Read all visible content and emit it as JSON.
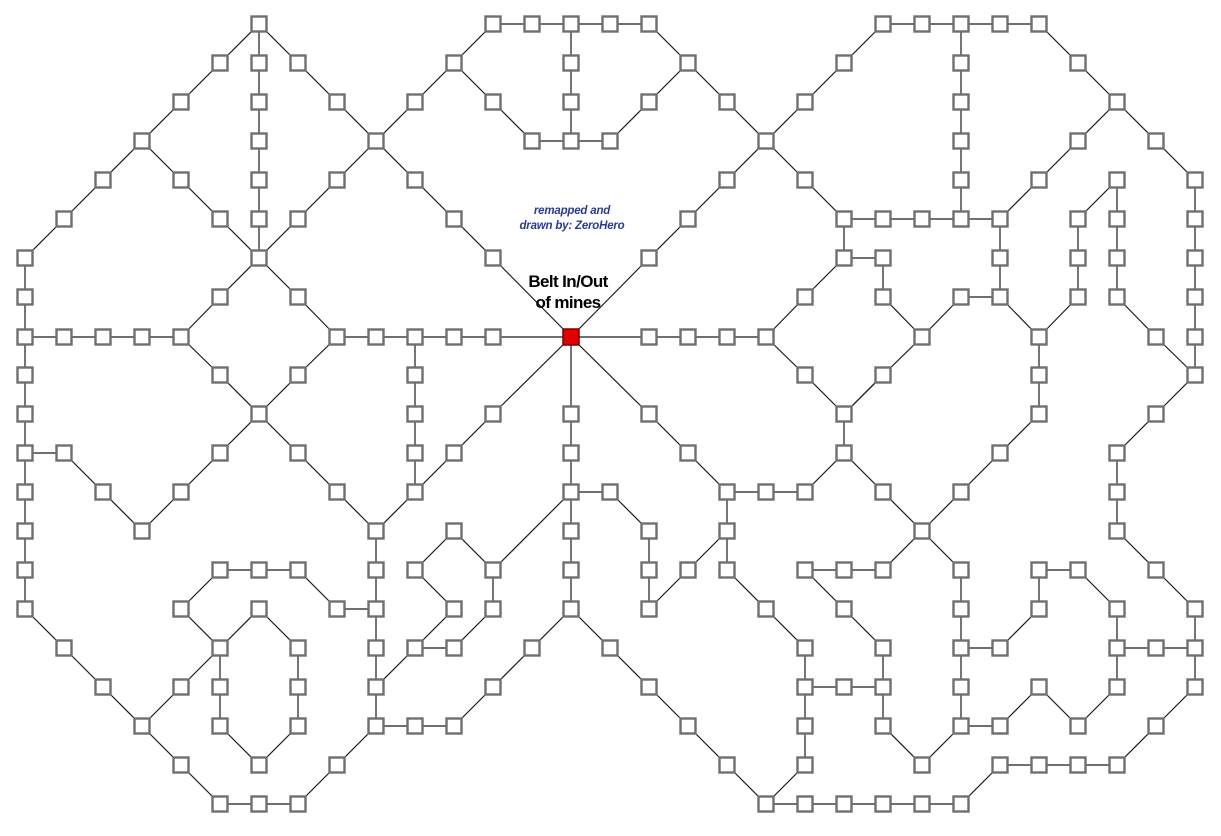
{
  "map": {
    "title_line1": "Belt In/Out",
    "title_line2": "of mines",
    "credit_line1": "remapped and",
    "credit_line2": "drawn by: ZeroHero",
    "colors": {
      "background": "#ffffff",
      "node_border": "#6f6f6f",
      "node_fill": "#ffffff",
      "center_fill": "#e00000",
      "path_line": "#1a1a1a",
      "credit_text": "#2c3a8f",
      "title_text": "#000000"
    },
    "legend": {
      "node_square": "room",
      "red_square": "belt in/out"
    }
  }
}
